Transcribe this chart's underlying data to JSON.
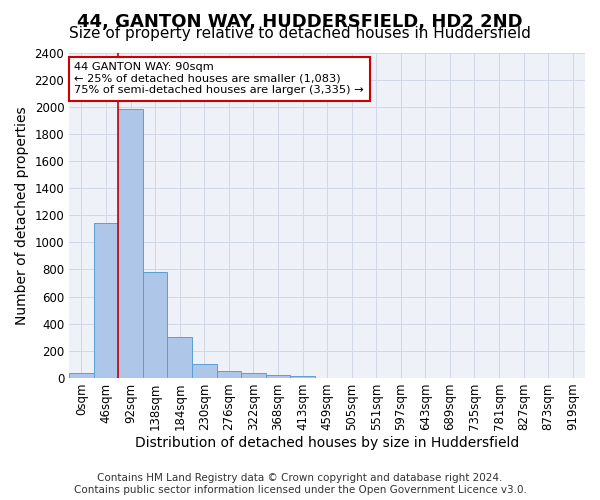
{
  "title_line1": "44, GANTON WAY, HUDDERSFIELD, HD2 2ND",
  "title_line2": "Size of property relative to detached houses in Huddersfield",
  "xlabel": "Distribution of detached houses by size in Huddersfield",
  "ylabel": "Number of detached properties",
  "footer_line1": "Contains HM Land Registry data © Crown copyright and database right 2024.",
  "footer_line2": "Contains public sector information licensed under the Open Government Licence v3.0.",
  "bin_labels": [
    "0sqm",
    "46sqm",
    "92sqm",
    "138sqm",
    "184sqm",
    "230sqm",
    "276sqm",
    "322sqm",
    "368sqm",
    "413sqm",
    "459sqm",
    "505sqm",
    "551sqm",
    "597sqm",
    "643sqm",
    "689sqm",
    "735sqm",
    "781sqm",
    "827sqm",
    "873sqm",
    "919sqm"
  ],
  "bar_values": [
    35,
    1140,
    1980,
    780,
    300,
    105,
    48,
    35,
    20,
    15,
    0,
    0,
    0,
    0,
    0,
    0,
    0,
    0,
    0,
    0,
    0
  ],
  "bar_color": "#aec6e8",
  "bar_edge_color": "#5a9fd4",
  "grid_color": "#d0d8e8",
  "background_color": "#eef2f8",
  "annotation_line1": "44 GANTON WAY: 90sqm",
  "annotation_line2": "← 25% of detached houses are smaller (1,083)",
  "annotation_line3": "75% of semi-detached houses are larger (3,335) →",
  "annotation_box_color": "#ffffff",
  "annotation_border_color": "#cc0000",
  "property_line_x": 1.5,
  "property_line_color": "#cc0000",
  "ylim": [
    0,
    2400
  ],
  "yticks": [
    0,
    200,
    400,
    600,
    800,
    1000,
    1200,
    1400,
    1600,
    1800,
    2000,
    2200,
    2400
  ],
  "title_fontsize": 13,
  "subtitle_fontsize": 11,
  "label_fontsize": 10,
  "tick_fontsize": 8.5,
  "footer_fontsize": 7.5
}
